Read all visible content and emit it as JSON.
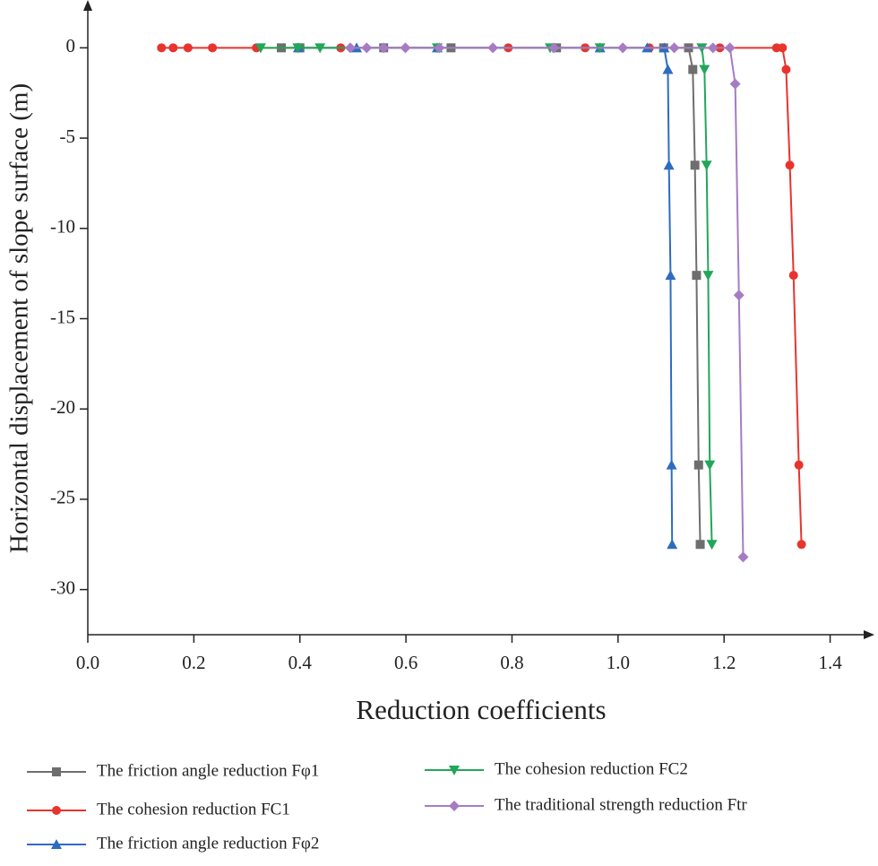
{
  "chart_data": {
    "type": "line",
    "xlabel": "Reduction coefficients",
    "ylabel": "Horizontal displacement of slope surface (m)",
    "xlim": [
      0,
      1.47
    ],
    "ylim": [
      -32.5,
      2.4
    ],
    "xticks": [
      {
        "value": 0,
        "label": "0.0"
      },
      0.2,
      0.4,
      0.6,
      0.8,
      {
        "value": 1,
        "label": "1.0"
      },
      1.2,
      1.4
    ],
    "yticks": [
      0,
      -5,
      -10,
      -15,
      -20,
      -25,
      -30
    ],
    "series": [
      {
        "name": "The friction angle reduction Fφ1",
        "color": "#6e6e6e",
        "marker": "square",
        "x": [
          0.365,
          0.4,
          0.558,
          0.685,
          0.884,
          1.086,
          1.133,
          1.141,
          1.145,
          1.148,
          1.152,
          1.155
        ],
        "values": [
          0,
          0,
          0,
          0,
          0,
          0,
          0,
          -1.2,
          -6.5,
          -12.6,
          -23.1,
          -27.5
        ]
      },
      {
        "name": "The cohesion reduction FC1",
        "color": "#e8342e",
        "marker": "circle",
        "x": [
          0.139,
          0.161,
          0.189,
          0.235,
          0.318,
          0.477,
          0.793,
          0.938,
          1.059,
          1.192,
          1.299,
          1.31,
          1.317,
          1.324,
          1.331,
          1.341,
          1.346
        ],
        "values": [
          0,
          0,
          0,
          0,
          0,
          0,
          0,
          0,
          0,
          0,
          0,
          0,
          -1.2,
          -6.5,
          -12.6,
          -23.1,
          -27.5
        ]
      },
      {
        "name": "The friction angle reduction Fφ2",
        "color": "#2e6cc0",
        "marker": "triangle",
        "x": [
          0.397,
          0.507,
          0.659,
          0.966,
          1.055,
          1.087,
          1.094,
          1.096,
          1.099,
          1.101,
          1.102
        ],
        "values": [
          0,
          0,
          0,
          0,
          0,
          0,
          -1.2,
          -6.5,
          -12.6,
          -23.1,
          -27.5
        ]
      },
      {
        "name": "The cohesion reduction FC2",
        "color": "#22a65a",
        "marker": "triangle-down",
        "x": [
          0.326,
          0.396,
          0.438,
          0.659,
          0.872,
          0.966,
          1.158,
          1.163,
          1.167,
          1.17,
          1.173,
          1.177
        ],
        "values": [
          0,
          0,
          0,
          0,
          0,
          0,
          0,
          -1.2,
          -6.5,
          -12.6,
          -23.1,
          -27.5
        ]
      },
      {
        "name": "The traditional strength reduction Ftr",
        "color": "#a57cc4",
        "marker": "diamond",
        "x": [
          0.495,
          0.526,
          0.558,
          0.599,
          0.663,
          0.764,
          0.879,
          1.009,
          1.106,
          1.179,
          1.211,
          1.221,
          1.228,
          1.236
        ],
        "values": [
          0,
          0,
          0,
          0,
          0,
          0,
          0,
          0,
          0,
          0,
          0,
          -2,
          -13.7,
          -28.2
        ]
      }
    ]
  }
}
